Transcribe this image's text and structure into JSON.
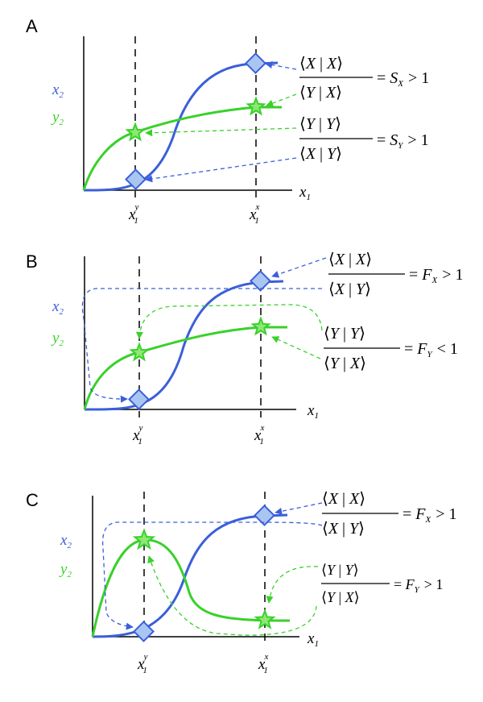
{
  "colors": {
    "blue": "#3b5fd9",
    "green": "#39d12a",
    "diamond_fill": "#a9c6f2",
    "star_fill": "#8ee874",
    "axis": "#000000"
  },
  "panels": [
    {
      "label": "A",
      "x_label": "x",
      "x_sub": "1",
      "y_blue": "x",
      "y_blue_sub": "2",
      "y_green": "y",
      "y_green_sub": "2",
      "tick_y": "x",
      "tick_y_sub": "1",
      "tick_y_sup": "y",
      "tick_x": "x",
      "tick_x_sub": "1",
      "tick_x_sup": "x",
      "eq1": {
        "num_l": "X",
        "num_r": "X",
        "den_l": "Y",
        "den_r": "X",
        "rhs": "= ",
        "sym": "S",
        "sym_sub": "X",
        "rel": "> 1"
      },
      "eq2": {
        "num_l": "Y",
        "num_r": "Y",
        "den_l": "X",
        "den_r": "Y",
        "rhs": "= ",
        "sym": "S",
        "sym_sub": "Y",
        "rel": "> 1"
      }
    },
    {
      "label": "B",
      "x_label": "x",
      "x_sub": "1",
      "y_blue": "x",
      "y_blue_sub": "2",
      "y_green": "y",
      "y_green_sub": "2",
      "tick_y": "x",
      "tick_y_sub": "1",
      "tick_y_sup": "y",
      "tick_x": "x",
      "tick_x_sub": "1",
      "tick_x_sup": "x",
      "eq1": {
        "num_l": "X",
        "num_r": "X",
        "den_l": "X",
        "den_r": "Y",
        "rhs": "= ",
        "sym": "F",
        "sym_sub": "X",
        "rel": "> 1"
      },
      "eq2": {
        "num_l": "Y",
        "num_r": "Y",
        "den_l": "Y",
        "den_r": "X",
        "rhs": "= ",
        "sym": "F",
        "sym_sub": "Y",
        "rel": "< 1"
      }
    },
    {
      "label": "C",
      "x_label": "x",
      "x_sub": "1",
      "y_blue": "x",
      "y_blue_sub": "2",
      "y_green": "y",
      "y_green_sub": "2",
      "tick_y": "x",
      "tick_y_sub": "1",
      "tick_y_sup": "y",
      "tick_x": "x",
      "tick_x_sub": "1",
      "tick_x_sup": "x",
      "eq1": {
        "num_l": "X",
        "num_r": "X",
        "den_l": "X",
        "den_r": "Y",
        "rhs": "= ",
        "sym": "F",
        "sym_sub": "X",
        "rel": "> 1"
      },
      "eq2": {
        "num_l": "Y",
        "num_r": "Y",
        "den_l": "Y",
        "den_r": "X",
        "rhs": "= ",
        "sym": "F",
        "sym_sub": "Y",
        "rel": "> 1"
      }
    }
  ]
}
